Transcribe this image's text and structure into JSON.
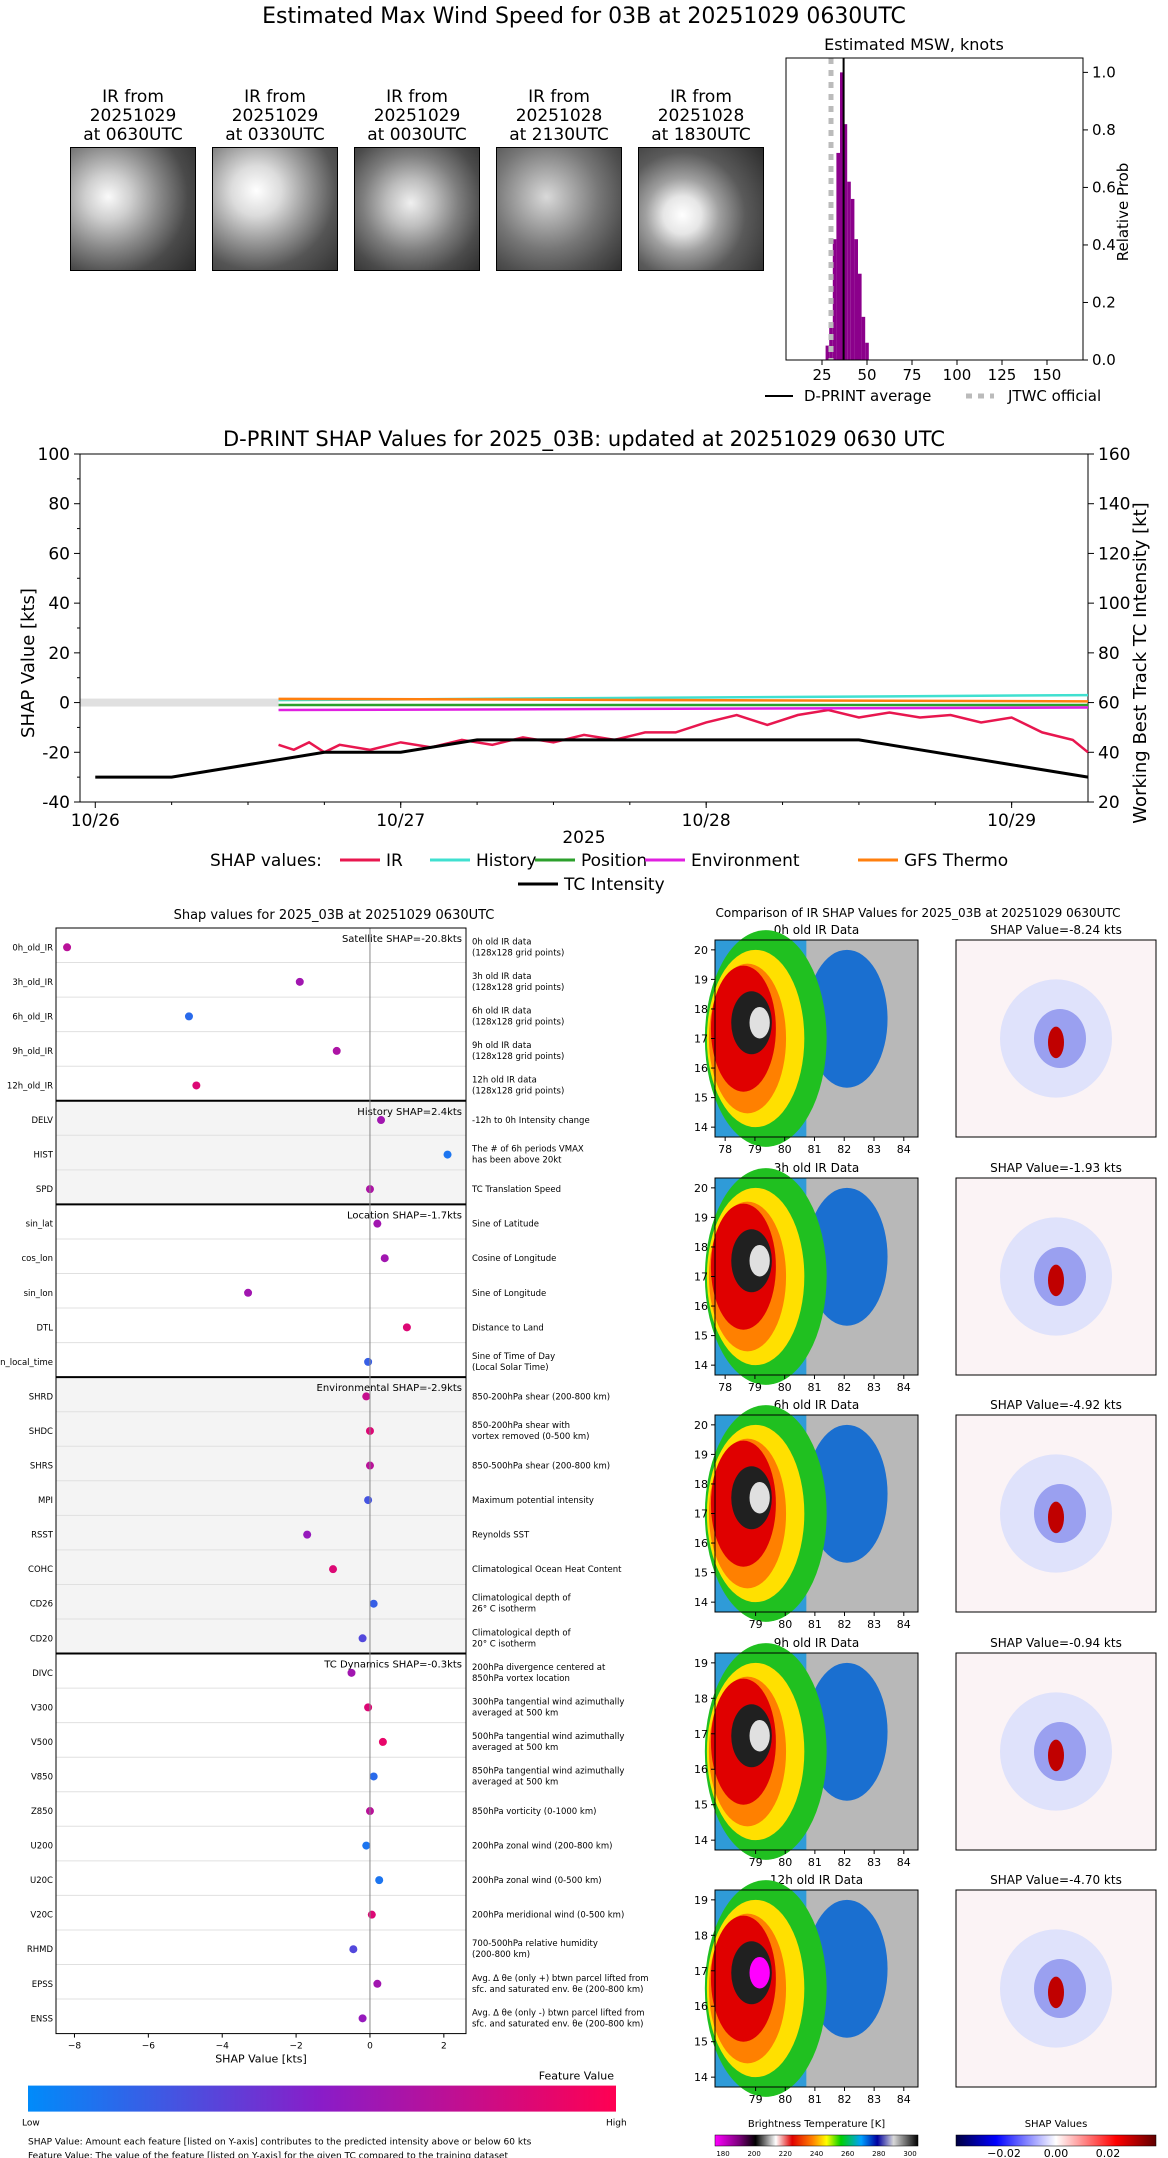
{
  "page": {
    "title": "Estimated Max Wind Speed for 03B at 20251029 0630UTC"
  },
  "ir_thumbnails": [
    {
      "l1": "IR from",
      "l2": "20251029",
      "l3": "at 0630UTC"
    },
    {
      "l1": "IR from",
      "l2": "20251029",
      "l3": "at 0330UTC"
    },
    {
      "l1": "IR from",
      "l2": "20251029",
      "l3": "at 0030UTC"
    },
    {
      "l1": "IR from",
      "l2": "20251028",
      "l3": "at 2130UTC"
    },
    {
      "l1": "IR from",
      "l2": "20251028",
      "l3": "at 1830UTC"
    }
  ],
  "colors": {
    "histogram": "#8b008b",
    "ir": "#e8174f",
    "history": "#40e0d0",
    "position": "#2ca02c",
    "environment": "#e020e0",
    "gfs": "#ff7f0e",
    "tc": "#000000",
    "jtwc": "#bbbbbb"
  },
  "chart_data": [
    {
      "type": "bar",
      "title": "Estimated MSW, knots",
      "xlabel": "",
      "ylabel": "Relative Prob",
      "xlim": [
        5,
        170
      ],
      "ylim": [
        0,
        1.05
      ],
      "xticks": [
        "25",
        "50",
        "75",
        "100",
        "125",
        "150"
      ],
      "yticks": [
        "0.0",
        "0.2",
        "0.4",
        "0.6",
        "0.8",
        "1.0"
      ],
      "x": [
        28,
        30,
        32,
        34,
        36,
        38,
        40,
        42,
        44,
        46,
        48,
        50
      ],
      "values": [
        0.05,
        0.12,
        0.42,
        0.72,
        1.0,
        0.82,
        0.62,
        0.56,
        0.42,
        0.3,
        0.15,
        0.06
      ],
      "dprint_average": 37,
      "jtwc_official": 30,
      "legend": [
        {
          "name": "D-PRINT average"
        },
        {
          "name": "JTWC official"
        }
      ]
    },
    {
      "type": "line",
      "title": "D-PRINT SHAP Values for 2025_03B: updated at 20251029 0630 UTC",
      "xlabel": "2025",
      "ylabel": "SHAP Value [kts]",
      "y2label": "Working Best Track TC Intensity [kt]",
      "xticks": [
        "10/26",
        "10/27",
        "10/28",
        "10/29"
      ],
      "yticks": [
        "-40",
        "-20",
        "0",
        "20",
        "40",
        "60",
        "80",
        "100"
      ],
      "y2ticks": [
        "20",
        "40",
        "60",
        "80",
        "100",
        "120",
        "140",
        "160"
      ],
      "ylim": [
        -40,
        100
      ],
      "y2lim": [
        20,
        160
      ],
      "legend_title": "SHAP values:",
      "series": [
        {
          "name": "IR",
          "x": [
            0.6,
            0.65,
            0.7,
            0.75,
            0.8,
            0.9,
            1.0,
            1.1,
            1.2,
            1.3,
            1.4,
            1.5,
            1.6,
            1.7,
            1.8,
            1.9,
            2.0,
            2.1,
            2.2,
            2.3,
            2.4,
            2.5,
            2.6,
            2.7,
            2.8,
            2.9,
            3.0,
            3.1,
            3.2,
            3.25
          ],
          "values": [
            -17,
            -19,
            -16,
            -20,
            -17,
            -19,
            -16,
            -18,
            -15,
            -17,
            -14,
            -16,
            -13,
            -15,
            -12,
            -12,
            -8,
            -5,
            -9,
            -5,
            -3,
            -6,
            -4,
            -6,
            -5,
            -8,
            -6,
            -12,
            -15,
            -20
          ]
        },
        {
          "name": "History",
          "x": [
            0.6,
            3.25
          ],
          "values": [
            1,
            3
          ]
        },
        {
          "name": "Position",
          "x": [
            0.6,
            3.25
          ],
          "values": [
            -1,
            -1
          ]
        },
        {
          "name": "Environment",
          "x": [
            0.6,
            3.25
          ],
          "values": [
            -3,
            -2
          ]
        },
        {
          "name": "GFS Thermo",
          "x": [
            0.6,
            3.25
          ],
          "values": [
            1.5,
            0.5
          ]
        },
        {
          "name": "TC Intensity",
          "x": [
            0,
            0.25,
            0.75,
            1.0,
            1.25,
            1.5,
            2.0,
            2.5,
            3.0,
            3.25
          ],
          "values": [
            30,
            30,
            40,
            40,
            45,
            45,
            45,
            45,
            35,
            30
          ]
        }
      ]
    },
    {
      "type": "scatter",
      "title": "Shap values for 2025_03B at 20251029 0630UTC",
      "xlabel": "SHAP Value [kts]",
      "xlim": [
        -8.5,
        2.6
      ],
      "xticks": [
        "−8",
        "−6",
        "−4",
        "−2",
        "0",
        "2"
      ],
      "groups": [
        {
          "label": "Satellite SHAP=-20.8kts",
          "shaded": false,
          "features": [
            {
              "name": "0h_old_IR",
              "desc1": "0h old IR data",
              "desc2": "(128x128 grid points)",
              "shap": -8.2,
              "feature_value": 0.7
            },
            {
              "name": "3h_old_IR",
              "desc1": "3h old IR data",
              "desc2": "(128x128 grid points)",
              "shap": -1.9,
              "feature_value": 0.6
            },
            {
              "name": "6h_old_IR",
              "desc1": "6h old IR data",
              "desc2": "(128x128 grid points)",
              "shap": -4.9,
              "feature_value": 0.15
            },
            {
              "name": "9h_old_IR",
              "desc1": "9h old IR data",
              "desc2": "(128x128 grid points)",
              "shap": -0.9,
              "feature_value": 0.65
            },
            {
              "name": "12h_old_IR",
              "desc1": "12h old IR data",
              "desc2": "(128x128 grid points)",
              "shap": -4.7,
              "feature_value": 0.85
            }
          ]
        },
        {
          "label": "History SHAP=2.4kts",
          "shaded": true,
          "features": [
            {
              "name": "DELV",
              "desc1": "-12h to 0h Intensity change",
              "desc2": "",
              "shap": 0.3,
              "feature_value": 0.6
            },
            {
              "name": "HIST",
              "desc1": "The # of 6h periods VMAX",
              "desc2": "has been above 20kt",
              "shap": 2.1,
              "feature_value": 0.1
            },
            {
              "name": "SPD",
              "desc1": "TC Translation Speed",
              "desc2": "",
              "shap": 0.0,
              "feature_value": 0.65
            }
          ]
        },
        {
          "label": "Location SHAP=-1.7kts",
          "shaded": false,
          "features": [
            {
              "name": "sin_lat",
              "desc1": "Sine of Latitude",
              "desc2": "",
              "shap": 0.2,
              "feature_value": 0.6
            },
            {
              "name": "cos_lon",
              "desc1": "Cosine of Longitude",
              "desc2": "",
              "shap": 0.4,
              "feature_value": 0.6
            },
            {
              "name": "sin_lon",
              "desc1": "Sine of Longitude",
              "desc2": "",
              "shap": -3.3,
              "feature_value": 0.6
            },
            {
              "name": "DTL",
              "desc1": "Distance to Land",
              "desc2": "",
              "shap": 1.0,
              "feature_value": 0.85
            },
            {
              "name": "sin_local_time",
              "desc1": "Sine of Time of Day",
              "desc2": "(Local Solar Time)",
              "shap": -0.05,
              "feature_value": 0.2
            }
          ]
        },
        {
          "label": "Environmental SHAP=-2.9kts",
          "shaded": true,
          "features": [
            {
              "name": "SHRD",
              "desc1": "850-200hPa shear (200-800 km)",
              "desc2": "",
              "shap": -0.1,
              "feature_value": 0.75
            },
            {
              "name": "SHDC",
              "desc1": "850-200hPa shear with",
              "desc2": "vortex removed (0-500 km)",
              "shap": 0.0,
              "feature_value": 0.85
            },
            {
              "name": "SHRS",
              "desc1": "850-500hPa shear (200-800 km)",
              "desc2": "",
              "shap": 0.0,
              "feature_value": 0.7
            },
            {
              "name": "MPI",
              "desc1": "Maximum potential intensity",
              "desc2": "",
              "shap": -0.05,
              "feature_value": 0.25
            },
            {
              "name": "RSST",
              "desc1": "Reynolds SST",
              "desc2": "",
              "shap": -1.7,
              "feature_value": 0.55
            },
            {
              "name": "COHC",
              "desc1": "Climatological Ocean Heat Content",
              "desc2": "",
              "shap": -1.0,
              "feature_value": 0.85
            },
            {
              "name": "CD26",
              "desc1": "Climatological depth of",
              "desc2": "26° C isotherm",
              "shap": 0.1,
              "feature_value": 0.2
            },
            {
              "name": "CD20",
              "desc1": "Climatological depth of",
              "desc2": "20° C isotherm",
              "shap": -0.2,
              "feature_value": 0.3
            }
          ]
        },
        {
          "label": "TC Dynamics SHAP=-0.3kts",
          "shaded": false,
          "features": [
            {
              "name": "DIVC",
              "desc1": "200hPa divergence centered at",
              "desc2": "850hPa vortex location",
              "shap": -0.5,
              "feature_value": 0.6
            },
            {
              "name": "V300",
              "desc1": "300hPa tangential wind azimuthally",
              "desc2": "averaged at 500 km",
              "shap": -0.05,
              "feature_value": 0.85
            },
            {
              "name": "V500",
              "desc1": "500hPa tangential wind azimuthally",
              "desc2": "averaged at 500 km",
              "shap": 0.35,
              "feature_value": 0.9
            },
            {
              "name": "V850",
              "desc1": "850hPa tangential wind azimuthally",
              "desc2": "averaged at 500 km",
              "shap": 0.1,
              "feature_value": 0.15
            },
            {
              "name": "Z850",
              "desc1": "850hPa vorticity (0-1000 km)",
              "desc2": "",
              "shap": 0.0,
              "feature_value": 0.7
            },
            {
              "name": "U200",
              "desc1": "200hPa zonal wind (200-800 km)",
              "desc2": "",
              "shap": -0.1,
              "feature_value": 0.1
            },
            {
              "name": "U20C",
              "desc1": "200hPa zonal wind (0-500 km)",
              "desc2": "",
              "shap": 0.25,
              "feature_value": 0.1
            },
            {
              "name": "V20C",
              "desc1": "200hPa meridional wind (0-500 km)",
              "desc2": "",
              "shap": 0.05,
              "feature_value": 0.85
            },
            {
              "name": "RHMD",
              "desc1": "700-500hPa relative humidity",
              "desc2": "(200-800 km)",
              "shap": -0.45,
              "feature_value": 0.3
            },
            {
              "name": "EPSS",
              "desc1": "Avg. Δ θe (only +) btwn parcel lifted from",
              "desc2": "sfc. and saturated env. θe (200-800 km)",
              "shap": 0.2,
              "feature_value": 0.6
            },
            {
              "name": "ENSS",
              "desc1": "Avg. Δ θe (only -) btwn parcel lifted from",
              "desc2": "sfc. and saturated env. θe (200-800 km)",
              "shap": -0.2,
              "feature_value": 0.55
            }
          ]
        }
      ]
    }
  ],
  "colorbar": {
    "title": "Feature Value",
    "low": "Low",
    "high": "High"
  },
  "footnotes": [
    "SHAP Value: Amount each feature [listed on Y-axis] contributes to the predicted intensity above or below 60 kts",
    "Feature Value: The value of the feature [listed on Y-axis] for the given TC compared to the training dataset"
  ],
  "comparison": {
    "title": "Comparison of IR SHAP Values for 2025_03B at 20251029 0630UTC",
    "rows": [
      {
        "ir_title": "0h old IR Data",
        "shap_title": "SHAP Value=-8.24 kts",
        "yticks": [
          "20",
          "19",
          "18",
          "17",
          "16",
          "15",
          "14"
        ],
        "xticks": [
          "78",
          "79",
          "80",
          "81",
          "82",
          "83",
          "84"
        ]
      },
      {
        "ir_title": "3h old IR Data",
        "shap_title": "SHAP Value=-1.93 kts",
        "yticks": [
          "20",
          "19",
          "18",
          "17",
          "16",
          "15",
          "14"
        ],
        "xticks": [
          "78",
          "79",
          "80",
          "81",
          "82",
          "83",
          "84"
        ]
      },
      {
        "ir_title": "6h old IR Data",
        "shap_title": "SHAP Value=-4.92 kts",
        "yticks": [
          "20",
          "19",
          "18",
          "17",
          "16",
          "15",
          "14"
        ],
        "xticks": [
          "79",
          "80",
          "81",
          "82",
          "83",
          "84"
        ]
      },
      {
        "ir_title": "9h old IR Data",
        "shap_title": "SHAP Value=-0.94 kts",
        "yticks": [
          "19",
          "18",
          "17",
          "16",
          "15",
          "14"
        ],
        "xticks": [
          "79",
          "80",
          "81",
          "82",
          "83",
          "84"
        ]
      },
      {
        "ir_title": "12h old IR Data",
        "shap_title": "SHAP Value=-4.70 kts",
        "yticks": [
          "19",
          "18",
          "17",
          "16",
          "15",
          "14"
        ],
        "xticks": [
          "79",
          "80",
          "81",
          "82",
          "83",
          "84"
        ]
      }
    ],
    "bt_colorbar": {
      "title": "Brightness Temperature [K]",
      "ticks": [
        "180",
        "200",
        "220",
        "240",
        "260",
        "280",
        "300"
      ]
    },
    "shap_colorbar": {
      "title": "SHAP Values",
      "ticks": [
        "−0.02",
        "0.00",
        "0.02"
      ]
    }
  }
}
